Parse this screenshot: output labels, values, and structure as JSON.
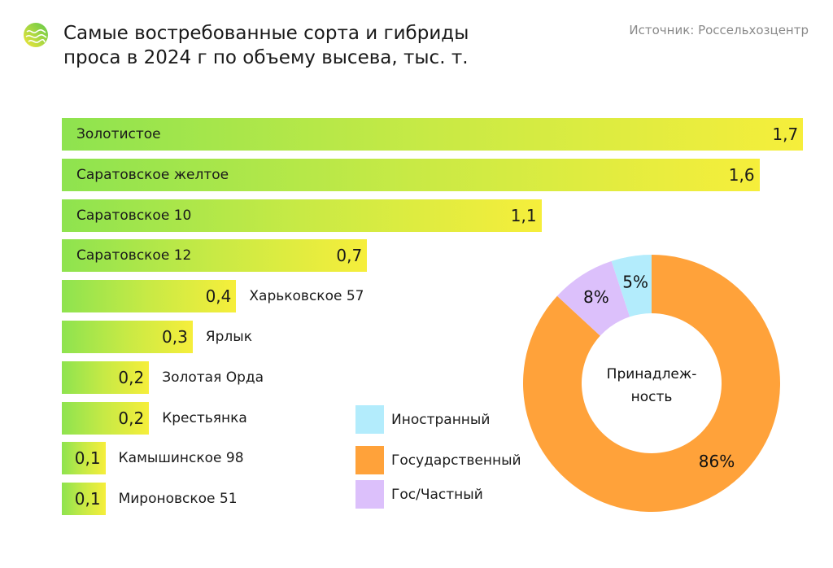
{
  "header": {
    "title_line1": "Самые востребованные сорта и гибриды",
    "title_line2": "проса в 2024 г по объему высева, тыс. т.",
    "source": "Источник: Россельхозцентр"
  },
  "chart_data": [
    {
      "type": "bar",
      "orientation": "horizontal",
      "title": "Самые востребованные сорта и гибриды проса в 2024 г по объему высева, тыс. т.",
      "categories": [
        "Золотистое",
        "Саратовское желтое",
        "Саратовское 10",
        "Саратовское 12",
        "Харьковское 57",
        "Ярлык",
        "Золотая Орда",
        "Крестьянка",
        "Камышинское 98",
        "Мироновское 51"
      ],
      "values": [
        1.7,
        1.6,
        1.1,
        0.7,
        0.4,
        0.3,
        0.2,
        0.2,
        0.1,
        0.1
      ],
      "value_labels": [
        "1,7",
        "1,6",
        "1,1",
        "0,7",
        "0,4",
        "0,3",
        "0,2",
        "0,2",
        "0,1",
        "0,1"
      ],
      "colors": {
        "gradient_start": "#8ee34f",
        "gradient_end": "#f6ee3b"
      }
    },
    {
      "type": "pie",
      "donut": true,
      "center_label_line1": "Принадлеж-",
      "center_label_line2": "ность",
      "slices": [
        {
          "name": "Государственный",
          "value": 86,
          "label": "86%",
          "color": "#ffa23a"
        },
        {
          "name": "Гос/Частный",
          "value": 8,
          "label": "8%",
          "color": "#dcc0fb"
        },
        {
          "name": "Иностранный",
          "value": 5,
          "label": "5%",
          "color": "#b3ecfc"
        }
      ],
      "legend": [
        {
          "name": "Иностранный",
          "color": "#b3ecfc"
        },
        {
          "name": "Государственный",
          "color": "#ffa23a"
        },
        {
          "name": "Гос/Частный",
          "color": "#dcc0fb"
        }
      ]
    }
  ]
}
